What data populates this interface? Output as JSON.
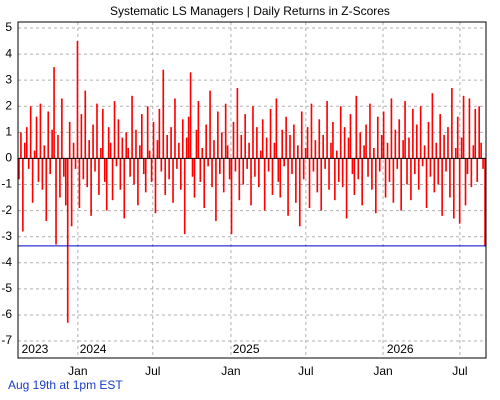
{
  "chart_data": {
    "type": "bar",
    "title": "Systematic LS Managers | Daily Returns in Z-Scores",
    "footnote": "Aug 19th at 1pm EST",
    "color": "#ff0000",
    "reference_line": {
      "value": -3.35,
      "color": "#0000cc"
    },
    "zero_line_color": "#000000",
    "grid": true,
    "ylim": [
      -7.65,
      5.23
    ],
    "yticks": [
      -7,
      -6,
      -5,
      -4,
      -3,
      -2,
      -1,
      0,
      1,
      2,
      3,
      4,
      5
    ],
    "xlim": [
      0,
      240
    ],
    "xticks": [
      {
        "value": 30.7,
        "label": "Jan"
      },
      {
        "value": 69.1,
        "label": "Jul"
      },
      {
        "value": 109.2,
        "label": "Jan"
      },
      {
        "value": 147.6,
        "label": "Jul"
      },
      {
        "value": 187.2,
        "label": "Jan"
      },
      {
        "value": 226.6,
        "label": "Jul"
      }
    ],
    "year_labels": [
      {
        "value": 8.7,
        "label": "2023"
      },
      {
        "value": 38.5,
        "label": "2024"
      },
      {
        "value": 117,
        "label": "2025"
      },
      {
        "value": 196,
        "label": "2026"
      }
    ],
    "values": [
      -0.8,
      1.0,
      -2.8,
      0.6,
      1.2,
      -0.4,
      2.0,
      -1.7,
      0.3,
      1.6,
      -0.9,
      2.1,
      -1.2,
      0.5,
      -2.4,
      1.8,
      -0.6,
      1.1,
      3.5,
      -3.3,
      0.9,
      -1.5,
      2.3,
      -0.7,
      -1.8,
      -6.3,
      1.4,
      -2.6,
      0.6,
      -0.4,
      4.5,
      -1.9,
      1.7,
      -0.8,
      2.6,
      -1.1,
      0.7,
      -2.2,
      1.3,
      -0.5,
      2.1,
      -1.4,
      0.4,
      1.9,
      -0.9,
      -2.0,
      1.2,
      0.6,
      -1.6,
      2.2,
      -0.3,
      1.5,
      -1.2,
      0.8,
      -2.3,
      1.0,
      0.4,
      -0.7,
      2.4,
      -1.0,
      1.1,
      -1.8,
      0.5,
      1.7,
      -0.6,
      -1.3,
      2.0,
      0.3,
      -0.9,
      1.4,
      -2.1,
      0.7,
      1.9,
      -0.5,
      3.4,
      -1.4,
      0.9,
      -0.8,
      1.2,
      -1.7,
      2.3,
      -0.4,
      0.6,
      -1.2,
      1.5,
      -2.9,
      0.8,
      1.6,
      3.3,
      -0.7,
      -1.5,
      1.1,
      2.2,
      -0.9,
      0.4,
      -1.9,
      1.3,
      -0.3,
      2.6,
      -1.1,
      0.7,
      -2.4,
      1.8,
      -0.6,
      1.0,
      -1.3,
      2.1,
      0.5,
      -0.8,
      -2.9,
      1.4,
      -0.5,
      2.7,
      -1.6,
      0.9,
      -1.0,
      1.7,
      -0.4,
      0.6,
      -1.8,
      2.0,
      -0.7,
      1.2,
      -1.1,
      0.3,
      1.5,
      -2.0,
      0.8,
      -0.5,
      1.9,
      -1.4,
      0.6,
      2.3,
      -0.9,
      -1.5,
      1.1,
      -0.3,
      1.6,
      -2.2,
      0.9,
      -0.6,
      1.3,
      -1.7,
      0.5,
      -2.6,
      1.8,
      -0.8,
      0.4,
      1.2,
      -1.9,
      2.1,
      -0.5,
      0.7,
      -1.3,
      1.5,
      -2.0,
      0.9,
      -0.4,
      2.2,
      -1.2,
      0.6,
      1.4,
      -1.6,
      0.3,
      -0.9,
      2.0,
      -1.1,
      1.2,
      -2.3,
      0.8,
      1.7,
      -0.6,
      -1.4,
      2.4,
      -0.8,
      1.0,
      -1.8,
      0.5,
      1.3,
      -0.7,
      2.1,
      -1.2,
      0.4,
      -2.1,
      1.6,
      -0.5,
      0.9,
      1.8,
      -1.5,
      0.6,
      -0.9,
      2.3,
      -1.7,
      1.1,
      -0.4,
      1.5,
      -2.0,
      0.7,
      2.2,
      -1.0,
      0.8,
      -1.6,
      1.9,
      -0.6,
      1.3,
      -1.2,
      2.0,
      -0.3,
      0.5,
      -1.9,
      1.4,
      -0.7,
      2.5,
      -1.3,
      0.6,
      -1.0,
      1.7,
      -2.2,
      0.9,
      -0.5,
      1.2,
      -1.5,
      2.7,
      -2.3,
      0.4,
      1.6,
      -2.5,
      0.8,
      2.4,
      -1.8,
      -0.6,
      2.3,
      -1.1,
      0.5,
      1.9,
      -0.9,
      2.0,
      0.6,
      -0.4,
      -3.35
    ]
  }
}
